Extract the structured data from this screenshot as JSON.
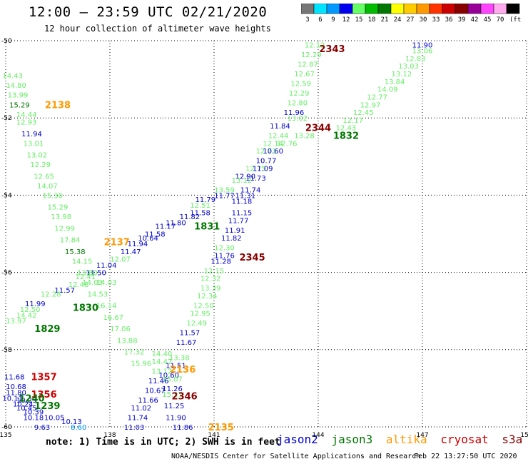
{
  "title": "12:00 – 23:59 UTC 02/21/2020",
  "subtitle": "12 hour collection of altimeter wave heights",
  "note": "note: 1) Time is in UTC; 2) SWH is in feet",
  "footer": "NOAA/NESDIS Center for Satellite Applications and Research",
  "footer_timestamp": "Feb 22 13:27:50 UTC 2020",
  "legend": [
    {
      "name": "jason2",
      "color": "#0000cc"
    },
    {
      "name": "jason3",
      "color": "#007700"
    },
    {
      "name": "altika",
      "color": "#ff9900"
    },
    {
      "name": "cryosat",
      "color": "#cc0000"
    },
    {
      "name": "s3a",
      "color": "#880000"
    }
  ],
  "colorbar": {
    "unit": "(ft)",
    "bins": [
      {
        "label": "3",
        "color": "#777777"
      },
      {
        "label": "6",
        "color": "#00e5ff"
      },
      {
        "label": "9",
        "color": "#0099ff"
      },
      {
        "label": "12",
        "color": "#0000ee"
      },
      {
        "label": "15",
        "color": "#66ff66"
      },
      {
        "label": "18",
        "color": "#00bb00"
      },
      {
        "label": "21",
        "color": "#007700"
      },
      {
        "label": "24",
        "color": "#ffff00"
      },
      {
        "label": "27",
        "color": "#ffcc00"
      },
      {
        "label": "30",
        "color": "#ff9900"
      },
      {
        "label": "33",
        "color": "#ff3300"
      },
      {
        "label": "36",
        "color": "#cc0000"
      },
      {
        "label": "39",
        "color": "#880000"
      },
      {
        "label": "42",
        "color": "#990099"
      },
      {
        "label": "45",
        "color": "#ff44ff"
      },
      {
        "label": "70",
        "color": "#ffaaee"
      },
      {
        "label": "",
        "color": "#000000"
      }
    ]
  },
  "chart_data": {
    "type": "scatter",
    "xlim": [
      135,
      150
    ],
    "ylim": [
      -60,
      -50
    ],
    "xticks": [
      "135",
      "138",
      "141",
      "144",
      "147",
      "150"
    ],
    "yticks": [
      "-50",
      "-52",
      "-54",
      "-56",
      "-58",
      "-60"
    ],
    "grid": true,
    "labels": [
      {
        "lon": 143.9,
        "lat": -50.1,
        "text": "12.12",
        "color": "#66ee66"
      },
      {
        "lon": 143.8,
        "lat": -50.35,
        "text": "12.29",
        "color": "#66ee66"
      },
      {
        "lon": 143.7,
        "lat": -50.6,
        "text": "12.87",
        "color": "#66ee66"
      },
      {
        "lon": 143.6,
        "lat": -50.85,
        "text": "12.67",
        "color": "#66ee66"
      },
      {
        "lon": 143.5,
        "lat": -51.1,
        "text": "12.59",
        "color": "#66ee66"
      },
      {
        "lon": 143.45,
        "lat": -51.35,
        "text": "12.29",
        "color": "#66ee66"
      },
      {
        "lon": 143.4,
        "lat": -51.6,
        "text": "12.80",
        "color": "#66ee66"
      },
      {
        "lon": 143.3,
        "lat": -51.85,
        "text": "11.96",
        "color": "#0000cc"
      },
      {
        "lon": 143.4,
        "lat": -52.0,
        "text": "13.02",
        "color": "#66ee66"
      },
      {
        "lon": 142.9,
        "lat": -52.2,
        "text": "11.84",
        "color": "#0000cc"
      },
      {
        "lon": 142.85,
        "lat": -52.45,
        "text": "12.44",
        "color": "#66ee66"
      },
      {
        "lon": 143.6,
        "lat": -52.45,
        "text": "13.28",
        "color": "#66ee66"
      },
      {
        "lon": 142.7,
        "lat": -52.65,
        "text": "12.14",
        "color": "#66ee66"
      },
      {
        "lon": 143.1,
        "lat": -52.65,
        "text": "12.76",
        "color": "#66ee66"
      },
      {
        "lon": 142.5,
        "lat": -52.85,
        "text": "12.71",
        "color": "#66ee66"
      },
      {
        "lon": 142.7,
        "lat": -52.85,
        "text": "10.60",
        "color": "#0000cc"
      },
      {
        "lon": 142.5,
        "lat": -53.1,
        "text": "10.77",
        "color": "#0000cc"
      },
      {
        "lon": 142.2,
        "lat": -53.3,
        "text": "12.75",
        "color": "#66ee66"
      },
      {
        "lon": 142.4,
        "lat": -53.3,
        "text": "11.09",
        "color": "#0000cc"
      },
      {
        "lon": 141.9,
        "lat": -53.5,
        "text": "12.90",
        "color": "#0000cc"
      },
      {
        "lon": 142.2,
        "lat": -53.55,
        "text": "11.73",
        "color": "#0000cc"
      },
      {
        "lon": 141.8,
        "lat": -53.6,
        "text": "13.12",
        "color": "#66ee66"
      },
      {
        "lon": 141.3,
        "lat": -53.85,
        "text": "13.59",
        "color": "#66ee66"
      },
      {
        "lon": 142.05,
        "lat": -53.85,
        "text": "11.74",
        "color": "#0000cc"
      },
      {
        "lon": 141.3,
        "lat": -54.0,
        "text": "11.77",
        "color": "#0000cc"
      },
      {
        "lon": 141.9,
        "lat": -54.0,
        "text": "11.31",
        "color": "#0000cc"
      },
      {
        "lon": 140.75,
        "lat": -54.1,
        "text": "11.79",
        "color": "#0000cc"
      },
      {
        "lon": 141.8,
        "lat": -54.15,
        "text": "11.18",
        "color": "#0000cc"
      },
      {
        "lon": 140.6,
        "lat": -54.25,
        "text": "12.51",
        "color": "#66ee66"
      },
      {
        "lon": 140.6,
        "lat": -54.45,
        "text": "11.58",
        "color": "#0000cc"
      },
      {
        "lon": 141.8,
        "lat": -54.45,
        "text": "11.15",
        "color": "#0000cc"
      },
      {
        "lon": 140.3,
        "lat": -54.55,
        "text": "11.82",
        "color": "#0000cc"
      },
      {
        "lon": 141.7,
        "lat": -54.65,
        "text": "11.77",
        "color": "#0000cc"
      },
      {
        "lon": 139.9,
        "lat": -54.7,
        "text": "11.80",
        "color": "#0000cc"
      },
      {
        "lon": 139.6,
        "lat": -54.8,
        "text": "11.17",
        "color": "#0000cc"
      },
      {
        "lon": 141.6,
        "lat": -54.9,
        "text": "11.91",
        "color": "#0000cc"
      },
      {
        "lon": 139.3,
        "lat": -55.0,
        "text": "11.58",
        "color": "#0000cc"
      },
      {
        "lon": 141.5,
        "lat": -55.1,
        "text": "11.82",
        "color": "#0000cc"
      },
      {
        "lon": 139.1,
        "lat": -55.1,
        "text": "10.64",
        "color": "#0000cc"
      },
      {
        "lon": 138.8,
        "lat": -55.25,
        "text": "11.94",
        "color": "#0000cc"
      },
      {
        "lon": 141.3,
        "lat": -55.35,
        "text": "12.30",
        "color": "#66ee66"
      },
      {
        "lon": 138.6,
        "lat": -55.45,
        "text": "11.47",
        "color": "#0000cc"
      },
      {
        "lon": 141.3,
        "lat": -55.55,
        "text": "11.76",
        "color": "#0000cc"
      },
      {
        "lon": 138.3,
        "lat": -55.65,
        "text": "12.07",
        "color": "#66ee66"
      },
      {
        "lon": 141.2,
        "lat": -55.7,
        "text": "11.28",
        "color": "#0000cc"
      },
      {
        "lon": 137.9,
        "lat": -55.8,
        "text": "11.04",
        "color": "#0000cc"
      },
      {
        "lon": 141.0,
        "lat": -55.95,
        "text": "12.15",
        "color": "#66ee66"
      },
      {
        "lon": 137.6,
        "lat": -56.0,
        "text": "11.50",
        "color": "#0000cc"
      },
      {
        "lon": 137.3,
        "lat": -56.1,
        "text": "12.41",
        "color": "#66ee66"
      },
      {
        "lon": 140.9,
        "lat": -56.15,
        "text": "12.32",
        "color": "#66ee66"
      },
      {
        "lon": 137.1,
        "lat": -56.3,
        "text": "12.48",
        "color": "#66ee66"
      },
      {
        "lon": 140.9,
        "lat": -56.4,
        "text": "13.39",
        "color": "#66ee66"
      },
      {
        "lon": 136.7,
        "lat": -56.45,
        "text": "11.57",
        "color": "#0000cc"
      },
      {
        "lon": 140.8,
        "lat": -56.6,
        "text": "12.34",
        "color": "#66ee66"
      },
      {
        "lon": 136.3,
        "lat": -56.55,
        "text": "12.28",
        "color": "#66ee66"
      },
      {
        "lon": 135.85,
        "lat": -56.8,
        "text": "11.99",
        "color": "#0000cc"
      },
      {
        "lon": 140.7,
        "lat": -56.85,
        "text": "12.50",
        "color": "#66ee66"
      },
      {
        "lon": 135.7,
        "lat": -56.95,
        "text": "12.50",
        "color": "#66ee66"
      },
      {
        "lon": 140.6,
        "lat": -57.05,
        "text": "12.95",
        "color": "#66ee66"
      },
      {
        "lon": 135.6,
        "lat": -57.1,
        "text": "14.42",
        "color": "#66ee66"
      },
      {
        "lon": 135.3,
        "lat": -57.25,
        "text": "13.97",
        "color": "#66ee66"
      },
      {
        "lon": 140.5,
        "lat": -57.3,
        "text": "12.49",
        "color": "#66ee66"
      },
      {
        "lon": 140.3,
        "lat": -57.55,
        "text": "11.57",
        "color": "#0000cc"
      },
      {
        "lon": 140.2,
        "lat": -57.8,
        "text": "11.67",
        "color": "#0000cc"
      },
      {
        "lon": 139.5,
        "lat": -58.1,
        "text": "14.40",
        "color": "#66ee66"
      },
      {
        "lon": 140.0,
        "lat": -58.2,
        "text": "13.38",
        "color": "#66ee66"
      },
      {
        "lon": 139.5,
        "lat": -58.3,
        "text": "14.47",
        "color": "#66ee66"
      },
      {
        "lon": 139.9,
        "lat": -58.4,
        "text": "11.51",
        "color": "#0000cc"
      },
      {
        "lon": 139.5,
        "lat": -58.55,
        "text": "13.12",
        "color": "#66ee66"
      },
      {
        "lon": 139.7,
        "lat": -58.65,
        "text": "10.60",
        "color": "#0000cc"
      },
      {
        "lon": 139.8,
        "lat": -58.75,
        "text": "15.07",
        "color": "#66ee66"
      },
      {
        "lon": 139.4,
        "lat": -58.8,
        "text": "11.46",
        "color": "#0000cc"
      },
      {
        "lon": 139.3,
        "lat": -59.05,
        "text": "10.67",
        "color": "#0000cc"
      },
      {
        "lon": 139.8,
        "lat": -59.0,
        "text": "11.26",
        "color": "#0000cc"
      },
      {
        "lon": 139.8,
        "lat": -59.15,
        "text": "15.27",
        "color": "#66ee66"
      },
      {
        "lon": 139.1,
        "lat": -59.3,
        "text": "11.66",
        "color": "#0000cc"
      },
      {
        "lon": 138.9,
        "lat": -59.5,
        "text": "11.02",
        "color": "#0000cc"
      },
      {
        "lon": 139.85,
        "lat": -59.45,
        "text": "11.25",
        "color": "#0000cc"
      },
      {
        "lon": 138.8,
        "lat": -59.75,
        "text": "11.74",
        "color": "#0000cc"
      },
      {
        "lon": 139.9,
        "lat": -59.75,
        "text": "11.90",
        "color": "#0000cc"
      },
      {
        "lon": 138.7,
        "lat": -60.0,
        "text": "11.03",
        "color": "#0000cc"
      },
      {
        "lon": 140.1,
        "lat": -60.0,
        "text": "11.86",
        "color": "#0000cc"
      },
      {
        "lon": 135.2,
        "lat": -50.9,
        "text": "14.43",
        "color": "#66ee66"
      },
      {
        "lon": 135.3,
        "lat": -51.15,
        "text": "14.80",
        "color": "#66ee66"
      },
      {
        "lon": 135.35,
        "lat": -51.4,
        "text": "13.99",
        "color": "#66ee66"
      },
      {
        "lon": 135.4,
        "lat": -51.65,
        "text": "15.29",
        "color": "#007700"
      },
      {
        "lon": 135.6,
        "lat": -51.9,
        "text": "14.44",
        "color": "#66ee66"
      },
      {
        "lon": 135.6,
        "lat": -52.1,
        "text": "12.93",
        "color": "#66ee66"
      },
      {
        "lon": 135.75,
        "lat": -52.4,
        "text": "11.94",
        "color": "#0000cc"
      },
      {
        "lon": 135.8,
        "lat": -52.65,
        "text": "13.01",
        "color": "#66ee66"
      },
      {
        "lon": 135.9,
        "lat": -52.95,
        "text": "13.02",
        "color": "#66ee66"
      },
      {
        "lon": 136.0,
        "lat": -53.2,
        "text": "12.29",
        "color": "#66ee66"
      },
      {
        "lon": 136.1,
        "lat": -53.5,
        "text": "12.65",
        "color": "#66ee66"
      },
      {
        "lon": 136.2,
        "lat": -53.75,
        "text": "14.07",
        "color": "#66ee66"
      },
      {
        "lon": 136.35,
        "lat": -54.0,
        "text": "15.30",
        "color": "#66ee66"
      },
      {
        "lon": 136.5,
        "lat": -54.3,
        "text": "15.29",
        "color": "#66ee66"
      },
      {
        "lon": 136.6,
        "lat": -54.55,
        "text": "13.98",
        "color": "#66ee66"
      },
      {
        "lon": 136.7,
        "lat": -54.85,
        "text": "12.99",
        "color": "#66ee66"
      },
      {
        "lon": 136.85,
        "lat": -55.15,
        "text": "17.84",
        "color": "#66ee66"
      },
      {
        "lon": 137.0,
        "lat": -55.45,
        "text": "15.38",
        "color": "#007700"
      },
      {
        "lon": 137.2,
        "lat": -55.7,
        "text": "14.15",
        "color": "#66ee66"
      },
      {
        "lon": 137.35,
        "lat": -56.0,
        "text": "13.80",
        "color": "#66ee66"
      },
      {
        "lon": 137.5,
        "lat": -56.25,
        "text": "14.03",
        "color": "#66ee66"
      },
      {
        "lon": 137.65,
        "lat": -56.55,
        "text": "14.53",
        "color": "#66ee66"
      },
      {
        "lon": 137.9,
        "lat": -56.25,
        "text": "14.03",
        "color": "#66ee66"
      },
      {
        "lon": 137.9,
        "lat": -56.85,
        "text": "16.14",
        "color": "#66ee66"
      },
      {
        "lon": 138.1,
        "lat": -57.15,
        "text": "16.67",
        "color": "#66ee66"
      },
      {
        "lon": 138.3,
        "lat": -57.45,
        "text": "17.06",
        "color": "#66ee66"
      },
      {
        "lon": 138.5,
        "lat": -57.75,
        "text": "13.88",
        "color": "#66ee66"
      },
      {
        "lon": 138.7,
        "lat": -58.05,
        "text": "17.32",
        "color": "#66ee66"
      },
      {
        "lon": 138.9,
        "lat": -58.35,
        "text": "15.96",
        "color": "#66ee66"
      },
      {
        "lon": 147.0,
        "lat": -50.1,
        "text": "11.90",
        "color": "#0000cc"
      },
      {
        "lon": 147.0,
        "lat": -50.25,
        "text": "13.06",
        "color": "#66ee66"
      },
      {
        "lon": 146.8,
        "lat": -50.45,
        "text": "12.83",
        "color": "#66ee66"
      },
      {
        "lon": 146.6,
        "lat": -50.65,
        "text": "13.03",
        "color": "#66ee66"
      },
      {
        "lon": 146.4,
        "lat": -50.85,
        "text": "13.12",
        "color": "#66ee66"
      },
      {
        "lon": 146.2,
        "lat": -51.05,
        "text": "13.84",
        "color": "#66ee66"
      },
      {
        "lon": 146.0,
        "lat": -51.25,
        "text": "14.09",
        "color": "#66ee66"
      },
      {
        "lon": 145.7,
        "lat": -51.45,
        "text": "12.77",
        "color": "#66ee66"
      },
      {
        "lon": 145.5,
        "lat": -51.65,
        "text": "12.97",
        "color": "#66ee66"
      },
      {
        "lon": 145.3,
        "lat": -51.85,
        "text": "12.45",
        "color": "#66ee66"
      },
      {
        "lon": 145.0,
        "lat": -52.05,
        "text": "12.17",
        "color": "#66ee66"
      },
      {
        "lon": 144.8,
        "lat": -52.25,
        "text": "12.43",
        "color": "#66ee66"
      },
      {
        "lon": 135.25,
        "lat": -58.7,
        "text": "11.68",
        "color": "#0000cc"
      },
      {
        "lon": 135.3,
        "lat": -58.95,
        "text": "10.68",
        "color": "#0000cc"
      },
      {
        "lon": 135.3,
        "lat": -59.1,
        "text": "11.80",
        "color": "#0000cc"
      },
      {
        "lon": 135.2,
        "lat": -59.25,
        "text": "10.11",
        "color": "#0000cc"
      },
      {
        "lon": 135.6,
        "lat": -59.3,
        "text": "10.29",
        "color": "#0000cc"
      },
      {
        "lon": 135.5,
        "lat": -59.4,
        "text": "10.24",
        "color": "#0000cc"
      },
      {
        "lon": 135.6,
        "lat": -59.5,
        "text": "10.45",
        "color": "#0000cc"
      },
      {
        "lon": 135.8,
        "lat": -59.6,
        "text": "10.39",
        "color": "#0000cc"
      },
      {
        "lon": 135.8,
        "lat": -59.75,
        "text": "10.18",
        "color": "#0000cc"
      },
      {
        "lon": 136.4,
        "lat": -59.75,
        "text": "10.05",
        "color": "#0000cc"
      },
      {
        "lon": 136.9,
        "lat": -59.85,
        "text": "10.13",
        "color": "#0000cc"
      },
      {
        "lon": 136.05,
        "lat": -60.0,
        "text": "9.63",
        "color": "#0000cc"
      },
      {
        "lon": 137.1,
        "lat": -60.0,
        "text": "8.60",
        "color": "#0099ff"
      }
    ],
    "passes": [
      {
        "lon": 144.4,
        "lat": -50.2,
        "text": "2343",
        "color": "#880000"
      },
      {
        "lon": 136.5,
        "lat": -51.65,
        "text": "2138",
        "color": "#ff9900"
      },
      {
        "lon": 144.0,
        "lat": -52.25,
        "text": "2344",
        "color": "#880000"
      },
      {
        "lon": 144.8,
        "lat": -52.45,
        "text": "1832",
        "color": "#007700"
      },
      {
        "lon": 140.8,
        "lat": -54.8,
        "text": "1831",
        "color": "#007700"
      },
      {
        "lon": 138.2,
        "lat": -55.2,
        "text": "2137",
        "color": "#ff9900"
      },
      {
        "lon": 142.1,
        "lat": -55.6,
        "text": "2345",
        "color": "#880000"
      },
      {
        "lon": 137.3,
        "lat": -56.9,
        "text": "1830",
        "color": "#007700"
      },
      {
        "lon": 136.2,
        "lat": -57.45,
        "text": "1829",
        "color": "#007700"
      },
      {
        "lon": 140.1,
        "lat": -58.5,
        "text": "2136",
        "color": "#ff9900"
      },
      {
        "lon": 136.1,
        "lat": -58.7,
        "text": "1357",
        "color": "#cc0000"
      },
      {
        "lon": 136.1,
        "lat": -59.15,
        "text": "1356",
        "color": "#cc0000"
      },
      {
        "lon": 140.15,
        "lat": -59.2,
        "text": "2346",
        "color": "#880000"
      },
      {
        "lon": 135.75,
        "lat": -59.25,
        "text": "1240",
        "color": "#007700"
      },
      {
        "lon": 136.2,
        "lat": -59.45,
        "text": "1239",
        "color": "#007700"
      },
      {
        "lon": 141.2,
        "lat": -60.0,
        "text": "2135",
        "color": "#ff9900"
      }
    ]
  }
}
